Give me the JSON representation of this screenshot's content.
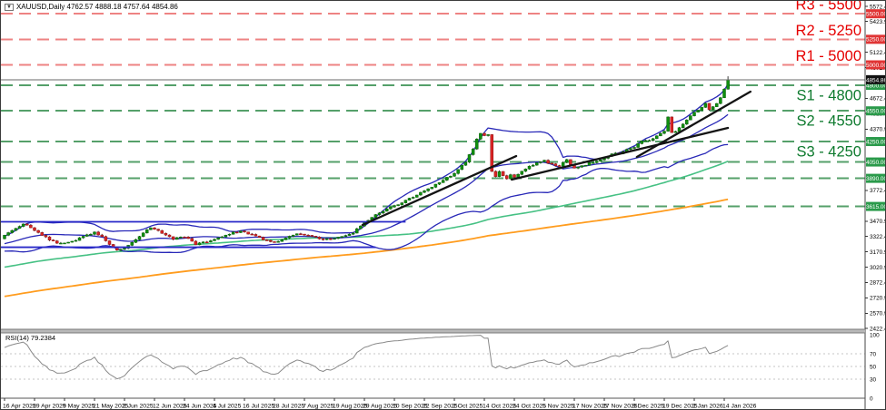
{
  "window": {
    "marker": "▼",
    "title_line": "XAUUSD,Daily  4762.57 4888.18 4757.64 4854.86"
  },
  "colors": {
    "up_fill": "#0f8f0f",
    "up_stroke": "#065f06",
    "down_fill": "#d92525",
    "down_stroke": "#8f1010",
    "wick": "#3c3c3c",
    "bollinger": "#2929b8",
    "sma100": "#46c184",
    "sma200": "#ff9c1e",
    "resistance_line": "#ee8383",
    "resistance_text": "#e60000",
    "resistance_badge": "#e03535",
    "support_line": "#55a06a",
    "support_text": "#0e7a2e",
    "support_badge": "#2a9a4a",
    "trendline": "#141414",
    "range_line": "#2929c8",
    "current_price_line": "#6a6a6a",
    "current_badge": "#111111",
    "rsi_line": "#8a8a8a",
    "rsi_grid": "#c6c6c6",
    "axis_text": "#000000",
    "frame": "#454545",
    "separator": "#b8b8b8"
  },
  "price_axis": {
    "ticks": [
      5572.4,
      5423.9,
      5122.4,
      4972.9,
      4672.4,
      4523.9,
      4370.9,
      3772.4,
      3470.9,
      3322.4,
      3170.9,
      3020.9,
      2872.4,
      2720.9,
      2570.9,
      2422.4
    ],
    "current_price": 4854.86,
    "current_price_label": "4854.86"
  },
  "chart_data": {
    "type": "candlestick",
    "symbol": "XAUUSD",
    "timeframe": "Daily",
    "last_bar_ohlc": {
      "open": 4762.57,
      "high": 4888.18,
      "low": 4757.64,
      "close": 4854.86
    },
    "bars_per_label": 8,
    "x_labels": [
      "16 Apr 2025",
      "29 Apr 2025",
      "9 May 2025",
      "21 May 2025",
      "2 Jun 2025",
      "12 Jun 2025",
      "24 Jun 2025",
      "4 Jul 2025",
      "16 Jul 2025",
      "28 Jul 2025",
      "7 Aug 2025",
      "19 Aug 2025",
      "29 Aug 2025",
      "10 Sep 2025",
      "22 Sep 2025",
      "2 Oct 2025",
      "14 Oct 2025",
      "24 Oct 2025",
      "5 Nov 2025",
      "17 Nov 2025",
      "27 Nov 2025",
      "9 Dec 2025",
      "19 Dec 2025",
      "2 Jan 2026",
      "14 Jan 2026"
    ],
    "close_path": [
      [
        0,
        3330
      ],
      [
        2,
        3385
      ],
      [
        5,
        3445
      ],
      [
        7,
        3410
      ],
      [
        9,
        3360
      ],
      [
        12,
        3290
      ],
      [
        15,
        3250
      ],
      [
        18,
        3272
      ],
      [
        21,
        3318
      ],
      [
        24,
        3360
      ],
      [
        26,
        3322
      ],
      [
        28,
        3248
      ],
      [
        30,
        3185
      ],
      [
        32,
        3205
      ],
      [
        34,
        3262
      ],
      [
        37,
        3352
      ],
      [
        39,
        3408
      ],
      [
        42,
        3355
      ],
      [
        45,
        3295
      ],
      [
        48,
        3322
      ],
      [
        51,
        3245
      ],
      [
        54,
        3272
      ],
      [
        57,
        3312
      ],
      [
        60,
        3350
      ],
      [
        63,
        3372
      ],
      [
        66,
        3342
      ],
      [
        69,
        3295
      ],
      [
        72,
        3262
      ],
      [
        75,
        3302
      ],
      [
        78,
        3342
      ],
      [
        81,
        3330
      ],
      [
        84,
        3302
      ],
      [
        87,
        3292
      ],
      [
        90,
        3322
      ],
      [
        93,
        3362
      ],
      [
        96,
        3455
      ],
      [
        100,
        3555
      ],
      [
        104,
        3620
      ],
      [
        108,
        3690
      ],
      [
        112,
        3768
      ],
      [
        116,
        3848
      ],
      [
        120,
        3942
      ],
      [
        123,
        4055
      ],
      [
        125,
        4180
      ],
      [
        126,
        4280
      ],
      [
        127,
        4335
      ],
      [
        128,
        4302
      ],
      [
        129,
        4322
      ],
      [
        130,
        3952
      ],
      [
        131,
        3902
      ],
      [
        132,
        3962
      ],
      [
        133,
        3920
      ],
      [
        134,
        3882
      ],
      [
        135,
        3932
      ],
      [
        136,
        3905
      ],
      [
        138,
        3958
      ],
      [
        140,
        4002
      ],
      [
        142,
        4048
      ],
      [
        144,
        4062
      ],
      [
        146,
        4028
      ],
      [
        148,
        4012
      ],
      [
        150,
        4068
      ],
      [
        152,
        3985
      ],
      [
        154,
        4008
      ],
      [
        156,
        4040
      ],
      [
        158,
        4062
      ],
      [
        160,
        4085
      ],
      [
        162,
        4128
      ],
      [
        164,
        4135
      ],
      [
        166,
        4172
      ],
      [
        168,
        4195
      ],
      [
        170,
        4252
      ],
      [
        172,
        4262
      ],
      [
        174,
        4305
      ],
      [
        176,
        4352
      ],
      [
        177,
        4492
      ],
      [
        178,
        4332
      ],
      [
        179,
        4345
      ],
      [
        180,
        4388
      ],
      [
        181,
        4422
      ],
      [
        182,
        4458
      ],
      [
        183,
        4502
      ],
      [
        184,
        4532
      ],
      [
        185,
        4552
      ],
      [
        186,
        4592
      ],
      [
        187,
        4622
      ],
      [
        188,
        4562
      ],
      [
        189,
        4598
      ],
      [
        190,
        4622
      ],
      [
        191,
        4672
      ],
      [
        192,
        4762.57
      ],
      [
        193,
        4854.86
      ]
    ],
    "levels": {
      "resistance": [
        {
          "price": 5500,
          "label": "R3 - 5500",
          "badge": "5500.00"
        },
        {
          "price": 5250,
          "label": "R2 - 5250",
          "badge": "5250.00"
        },
        {
          "price": 5000,
          "label": "R1 - 5000",
          "badge": "5000.00"
        }
      ],
      "support": [
        {
          "price": 4800,
          "label": "S1 - 4800",
          "badge": "4800.00"
        },
        {
          "price": 4550,
          "label": "S2 - 4550",
          "badge": "4550.00"
        },
        {
          "price": 4250,
          "label": "S3 - 4250",
          "badge": "4250.00"
        },
        {
          "price": 4050,
          "label": "",
          "badge": "4050.00"
        },
        {
          "price": 3890,
          "label": "",
          "badge": "3890.00"
        },
        {
          "price": 3615,
          "label": "",
          "badge": "3615.00"
        }
      ]
    },
    "trendlines": [
      {
        "i1": 95.5,
        "price1": 3434,
        "i2": 136.5,
        "price2": 4108
      },
      {
        "i1": 135.3,
        "price1": 3878,
        "i2": 193.0,
        "price2": 4383
      },
      {
        "i1": 168.7,
        "price1": 4099,
        "i2": 199.0,
        "price2": 4738
      }
    ],
    "range_segments": [
      {
        "price": 3465,
        "i1": -1,
        "i2": 107
      },
      {
        "price": 3216,
        "i1": -1,
        "i2": 99
      }
    ],
    "overlays": {
      "bollinger_period": 20,
      "bollinger_deviation": 2,
      "ma_fast": 100,
      "ma_slow": 200
    },
    "rsi": {
      "label": "RSI(14) 79.2384",
      "period": 14,
      "value": 79.2384,
      "grid": [
        70,
        50,
        30
      ],
      "axis": [
        "100",
        "70",
        "50",
        "30",
        "0"
      ]
    }
  }
}
